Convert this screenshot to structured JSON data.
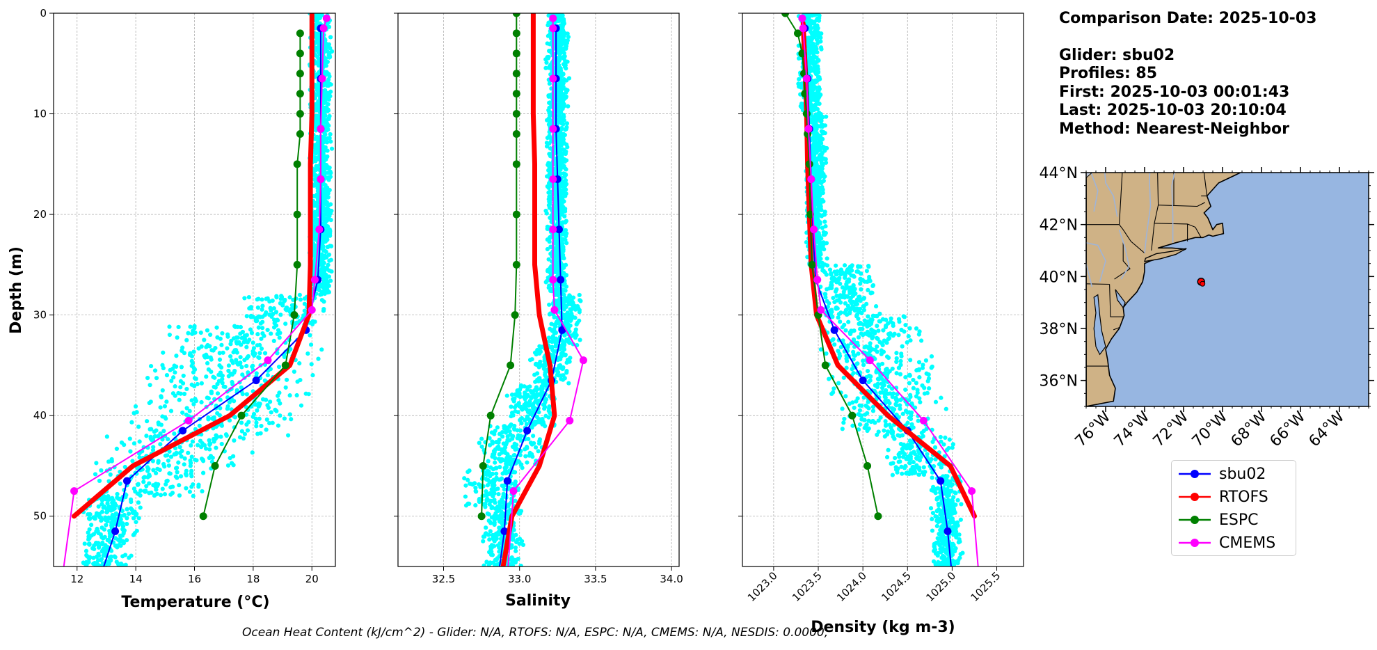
{
  "chart_data": [
    {
      "type": "line",
      "xlabel": "Temperature (°C)",
      "ylabel": "Depth (m)",
      "xlim": [
        11.2,
        20.8
      ],
      "ylim": [
        55,
        0
      ],
      "xticks": [
        12,
        14,
        16,
        18,
        20
      ],
      "yticks": [
        0,
        10,
        20,
        30,
        40,
        50
      ],
      "grid": true,
      "scatter_cloud": {
        "name": "glider raw",
        "color": "#00ffff",
        "bands": [
          {
            "d": [
              0,
              28
            ],
            "lo": 19.9,
            "hi": 20.7
          },
          {
            "d": [
              28,
              31
            ],
            "lo": 17.5,
            "hi": 20.6
          },
          {
            "d": [
              31,
              35
            ],
            "lo": 14.6,
            "hi": 20.6
          },
          {
            "d": [
              35,
              39
            ],
            "lo": 13.8,
            "hi": 20.5
          },
          {
            "d": [
              39,
              42
            ],
            "lo": 13.3,
            "hi": 20.0
          },
          {
            "d": [
              42,
              45
            ],
            "lo": 12.4,
            "hi": 18.3
          },
          {
            "d": [
              45,
              48
            ],
            "lo": 12.2,
            "hi": 16.8
          },
          {
            "d": [
              48,
              52
            ],
            "lo": 12.1,
            "hi": 14.2
          },
          {
            "d": [
              52,
              55
            ],
            "lo": 12.1,
            "hi": 13.9
          }
        ]
      },
      "series": [
        {
          "name": "sbu02",
          "color": "#0000ff",
          "lw": 2,
          "marker": true,
          "values": [
            [
              20.3,
              1.5
            ],
            [
              20.3,
              6.5
            ],
            [
              20.3,
              11.5
            ],
            [
              20.3,
              16.5
            ],
            [
              20.3,
              21.5
            ],
            [
              20.2,
              26.5
            ],
            [
              19.8,
              31.5
            ],
            [
              18.1,
              36.5
            ],
            [
              15.6,
              41.5
            ],
            [
              13.7,
              46.5
            ],
            [
              13.3,
              51.5
            ],
            [
              12.8,
              56
            ]
          ]
        },
        {
          "name": "RTOFS",
          "color": "#ff0000",
          "lw": 7,
          "marker": false,
          "values": [
            [
              20.0,
              0
            ],
            [
              20.0,
              5
            ],
            [
              20.0,
              10
            ],
            [
              19.95,
              15
            ],
            [
              19.95,
              20
            ],
            [
              19.95,
              25
            ],
            [
              19.9,
              30
            ],
            [
              19.25,
              35
            ],
            [
              17.2,
              40
            ],
            [
              13.9,
              45
            ],
            [
              11.9,
              50
            ]
          ]
        },
        {
          "name": "ESPC",
          "color": "#008000",
          "lw": 2,
          "marker": true,
          "values": [
            [
              19.6,
              2
            ],
            [
              19.6,
              4
            ],
            [
              19.6,
              6
            ],
            [
              19.6,
              8
            ],
            [
              19.6,
              10
            ],
            [
              19.6,
              12
            ],
            [
              19.5,
              15
            ],
            [
              19.5,
              20
            ],
            [
              19.5,
              25
            ],
            [
              19.4,
              30
            ],
            [
              19.1,
              35
            ],
            [
              17.6,
              40
            ],
            [
              16.7,
              45
            ],
            [
              16.3,
              50
            ]
          ]
        },
        {
          "name": "CMEMS",
          "color": "#ff00ff",
          "lw": 2,
          "marker": true,
          "values": [
            [
              20.5,
              0.5
            ],
            [
              20.4,
              1.5
            ],
            [
              20.35,
              6.5
            ],
            [
              20.3,
              11.5
            ],
            [
              20.3,
              16.5
            ],
            [
              20.25,
              21.5
            ],
            [
              20.1,
              26.5
            ],
            [
              20.0,
              29.5
            ],
            [
              18.5,
              34.5
            ],
            [
              15.8,
              40.5
            ],
            [
              11.9,
              47.5
            ],
            [
              11.5,
              56
            ]
          ]
        }
      ]
    },
    {
      "type": "line",
      "xlabel": "Salinity",
      "ylim": [
        55,
        0
      ],
      "xlim": [
        32.2,
        34.05
      ],
      "xticks": [
        "32.5",
        "33.0",
        "33.5",
        "34.0"
      ],
      "grid": true,
      "scatter_cloud": {
        "name": "glider raw",
        "color": "#00ffff",
        "bands": [
          {
            "d": [
              0,
              8
            ],
            "lo": 33.17,
            "hi": 33.33
          },
          {
            "d": [
              8,
              28
            ],
            "lo": 33.17,
            "hi": 33.32
          },
          {
            "d": [
              28,
              33
            ],
            "lo": 33.17,
            "hi": 33.42
          },
          {
            "d": [
              33,
              37
            ],
            "lo": 33.05,
            "hi": 33.35
          },
          {
            "d": [
              37,
              41
            ],
            "lo": 32.9,
            "hi": 33.26
          },
          {
            "d": [
              41,
              45
            ],
            "lo": 32.72,
            "hi": 33.2
          },
          {
            "d": [
              45,
              49
            ],
            "lo": 32.62,
            "hi": 33.05
          },
          {
            "d": [
              49,
              55
            ],
            "lo": 32.75,
            "hi": 33.03
          }
        ]
      },
      "series": [
        {
          "name": "sbu02",
          "color": "#0000ff",
          "lw": 2,
          "marker": true,
          "values": [
            [
              33.24,
              1.5
            ],
            [
              33.24,
              6.5
            ],
            [
              33.24,
              11.5
            ],
            [
              33.25,
              16.5
            ],
            [
              33.26,
              21.5
            ],
            [
              33.27,
              26.5
            ],
            [
              33.28,
              31.5
            ],
            [
              33.21,
              36.5
            ],
            [
              33.05,
              41.5
            ],
            [
              32.92,
              46.5
            ],
            [
              32.9,
              51.5
            ],
            [
              32.86,
              56
            ]
          ]
        },
        {
          "name": "RTOFS",
          "color": "#ff0000",
          "lw": 7,
          "marker": false,
          "values": [
            [
              33.09,
              0
            ],
            [
              33.09,
              5
            ],
            [
              33.09,
              10
            ],
            [
              33.1,
              15
            ],
            [
              33.1,
              20
            ],
            [
              33.1,
              25
            ],
            [
              33.13,
              30
            ],
            [
              33.2,
              35
            ],
            [
              33.23,
              40
            ],
            [
              33.13,
              45
            ],
            [
              32.95,
              50
            ],
            [
              32.88,
              56
            ]
          ]
        },
        {
          "name": "ESPC",
          "color": "#008000",
          "lw": 2,
          "marker": true,
          "values": [
            [
              32.98,
              0
            ],
            [
              32.98,
              2
            ],
            [
              32.98,
              4
            ],
            [
              32.98,
              6
            ],
            [
              32.98,
              8
            ],
            [
              32.98,
              10
            ],
            [
              32.98,
              12
            ],
            [
              32.98,
              15
            ],
            [
              32.98,
              20
            ],
            [
              32.98,
              25
            ],
            [
              32.97,
              30
            ],
            [
              32.94,
              35
            ],
            [
              32.81,
              40
            ],
            [
              32.76,
              45
            ],
            [
              32.75,
              50
            ]
          ]
        },
        {
          "name": "CMEMS",
          "color": "#ff00ff",
          "lw": 2,
          "marker": true,
          "values": [
            [
              33.22,
              0.5
            ],
            [
              33.22,
              1.5
            ],
            [
              33.22,
              6.5
            ],
            [
              33.22,
              11.5
            ],
            [
              33.22,
              16.5
            ],
            [
              33.22,
              21.5
            ],
            [
              33.22,
              26.5
            ],
            [
              33.23,
              29.5
            ],
            [
              33.42,
              34.5
            ],
            [
              33.33,
              40.5
            ],
            [
              32.96,
              47.5
            ],
            [
              32.92,
              56
            ]
          ]
        }
      ]
    },
    {
      "type": "line",
      "xlabel": "Density (kg m-3)",
      "ylim": [
        55,
        0
      ],
      "xlim": [
        1022.65,
        1025.8
      ],
      "xticks": [
        "1023.0",
        "1023.5",
        "1024.0",
        "1024.5",
        "1025.0",
        "1025.5"
      ],
      "grid": true,
      "scatter_cloud": {
        "name": "glider raw",
        "color": "#00ffff",
        "bands": [
          {
            "d": [
              0,
              10
            ],
            "lo": 1023.27,
            "hi": 1023.55
          },
          {
            "d": [
              10,
              25
            ],
            "lo": 1023.35,
            "hi": 1023.6
          },
          {
            "d": [
              25,
              30
            ],
            "lo": 1023.45,
            "hi": 1024.2
          },
          {
            "d": [
              30,
              34
            ],
            "lo": 1023.45,
            "hi": 1024.7
          },
          {
            "d": [
              34,
              38
            ],
            "lo": 1023.5,
            "hi": 1024.9
          },
          {
            "d": [
              38,
              42
            ],
            "lo": 1023.7,
            "hi": 1024.95
          },
          {
            "d": [
              42,
              46
            ],
            "lo": 1024.2,
            "hi": 1025.05
          },
          {
            "d": [
              46,
              55
            ],
            "lo": 1024.75,
            "hi": 1025.12
          }
        ]
      },
      "series": [
        {
          "name": "sbu02",
          "color": "#0000ff",
          "lw": 2,
          "marker": true,
          "values": [
            [
              1023.35,
              1.5
            ],
            [
              1023.38,
              6.5
            ],
            [
              1023.4,
              11.5
            ],
            [
              1023.42,
              16.5
            ],
            [
              1023.44,
              21.5
            ],
            [
              1023.47,
              26.5
            ],
            [
              1023.68,
              31.5
            ],
            [
              1024.0,
              36.5
            ],
            [
              1024.5,
              41.5
            ],
            [
              1024.87,
              46.5
            ],
            [
              1024.95,
              51.5
            ],
            [
              1025.0,
              56
            ]
          ]
        },
        {
          "name": "RTOFS",
          "color": "#ff0000",
          "lw": 7,
          "marker": false,
          "values": [
            [
              1023.33,
              1
            ],
            [
              1023.35,
              5
            ],
            [
              1023.37,
              10
            ],
            [
              1023.38,
              15
            ],
            [
              1023.4,
              20
            ],
            [
              1023.42,
              25
            ],
            [
              1023.48,
              30
            ],
            [
              1023.72,
              35
            ],
            [
              1024.28,
              40
            ],
            [
              1024.98,
              45
            ],
            [
              1025.25,
              50
            ]
          ]
        },
        {
          "name": "ESPC",
          "color": "#008000",
          "lw": 2,
          "marker": true,
          "values": [
            [
              1023.13,
              0
            ],
            [
              1023.27,
              2
            ],
            [
              1023.32,
              4
            ],
            [
              1023.34,
              6
            ],
            [
              1023.35,
              8
            ],
            [
              1023.37,
              10
            ],
            [
              1023.38,
              12
            ],
            [
              1023.4,
              15
            ],
            [
              1023.41,
              20
            ],
            [
              1023.43,
              25
            ],
            [
              1023.5,
              30
            ],
            [
              1023.58,
              35
            ],
            [
              1023.88,
              40
            ],
            [
              1024.05,
              45
            ],
            [
              1024.17,
              50
            ]
          ]
        },
        {
          "name": "CMEMS",
          "color": "#ff00ff",
          "lw": 2,
          "marker": true,
          "values": [
            [
              1023.32,
              0.5
            ],
            [
              1023.33,
              1.5
            ],
            [
              1023.37,
              6.5
            ],
            [
              1023.39,
              11.5
            ],
            [
              1023.42,
              16.5
            ],
            [
              1023.45,
              21.5
            ],
            [
              1023.49,
              26.5
            ],
            [
              1023.53,
              29.5
            ],
            [
              1024.08,
              34.5
            ],
            [
              1024.68,
              40.5
            ],
            [
              1025.22,
              47.5
            ],
            [
              1025.3,
              56
            ]
          ]
        }
      ]
    }
  ],
  "info": {
    "comparison_date": "Comparison Date: 2025-10-03",
    "glider": "Glider: sbu02",
    "profiles": "Profiles: 85",
    "first": "First: 2025-10-03 00:01:43",
    "last": "Last: 2025-10-03 20:10:04",
    "method": "Method: Nearest-Neighbor"
  },
  "map": {
    "lon_range": [
      -77,
      -62.5
    ],
    "lat_range": [
      35,
      44
    ],
    "lat_ticks": [
      "44°N",
      "42°N",
      "40°N",
      "38°N",
      "36°N"
    ],
    "lon_ticks": [
      "76°W",
      "74°W",
      "72°W",
      "70°W",
      "68°W",
      "66°W",
      "64°W"
    ],
    "ocean_color": "#97b6e1",
    "land_color": "#cfb286",
    "glider_position": [
      -71.1,
      39.8
    ],
    "glider_color": "#ff0000"
  },
  "legend": [
    {
      "label": "sbu02",
      "color": "#0000ff"
    },
    {
      "label": "RTOFS",
      "color": "#ff0000"
    },
    {
      "label": "ESPC",
      "color": "#008000"
    },
    {
      "label": "CMEMS",
      "color": "#ff00ff"
    }
  ],
  "footer": "Ocean Heat Content (kJ/cm^2) - Glider: N/A,  RTOFS: N/A,  ESPC: N/A,  CMEMS: N/A,  NESDIS: 0.0000,"
}
